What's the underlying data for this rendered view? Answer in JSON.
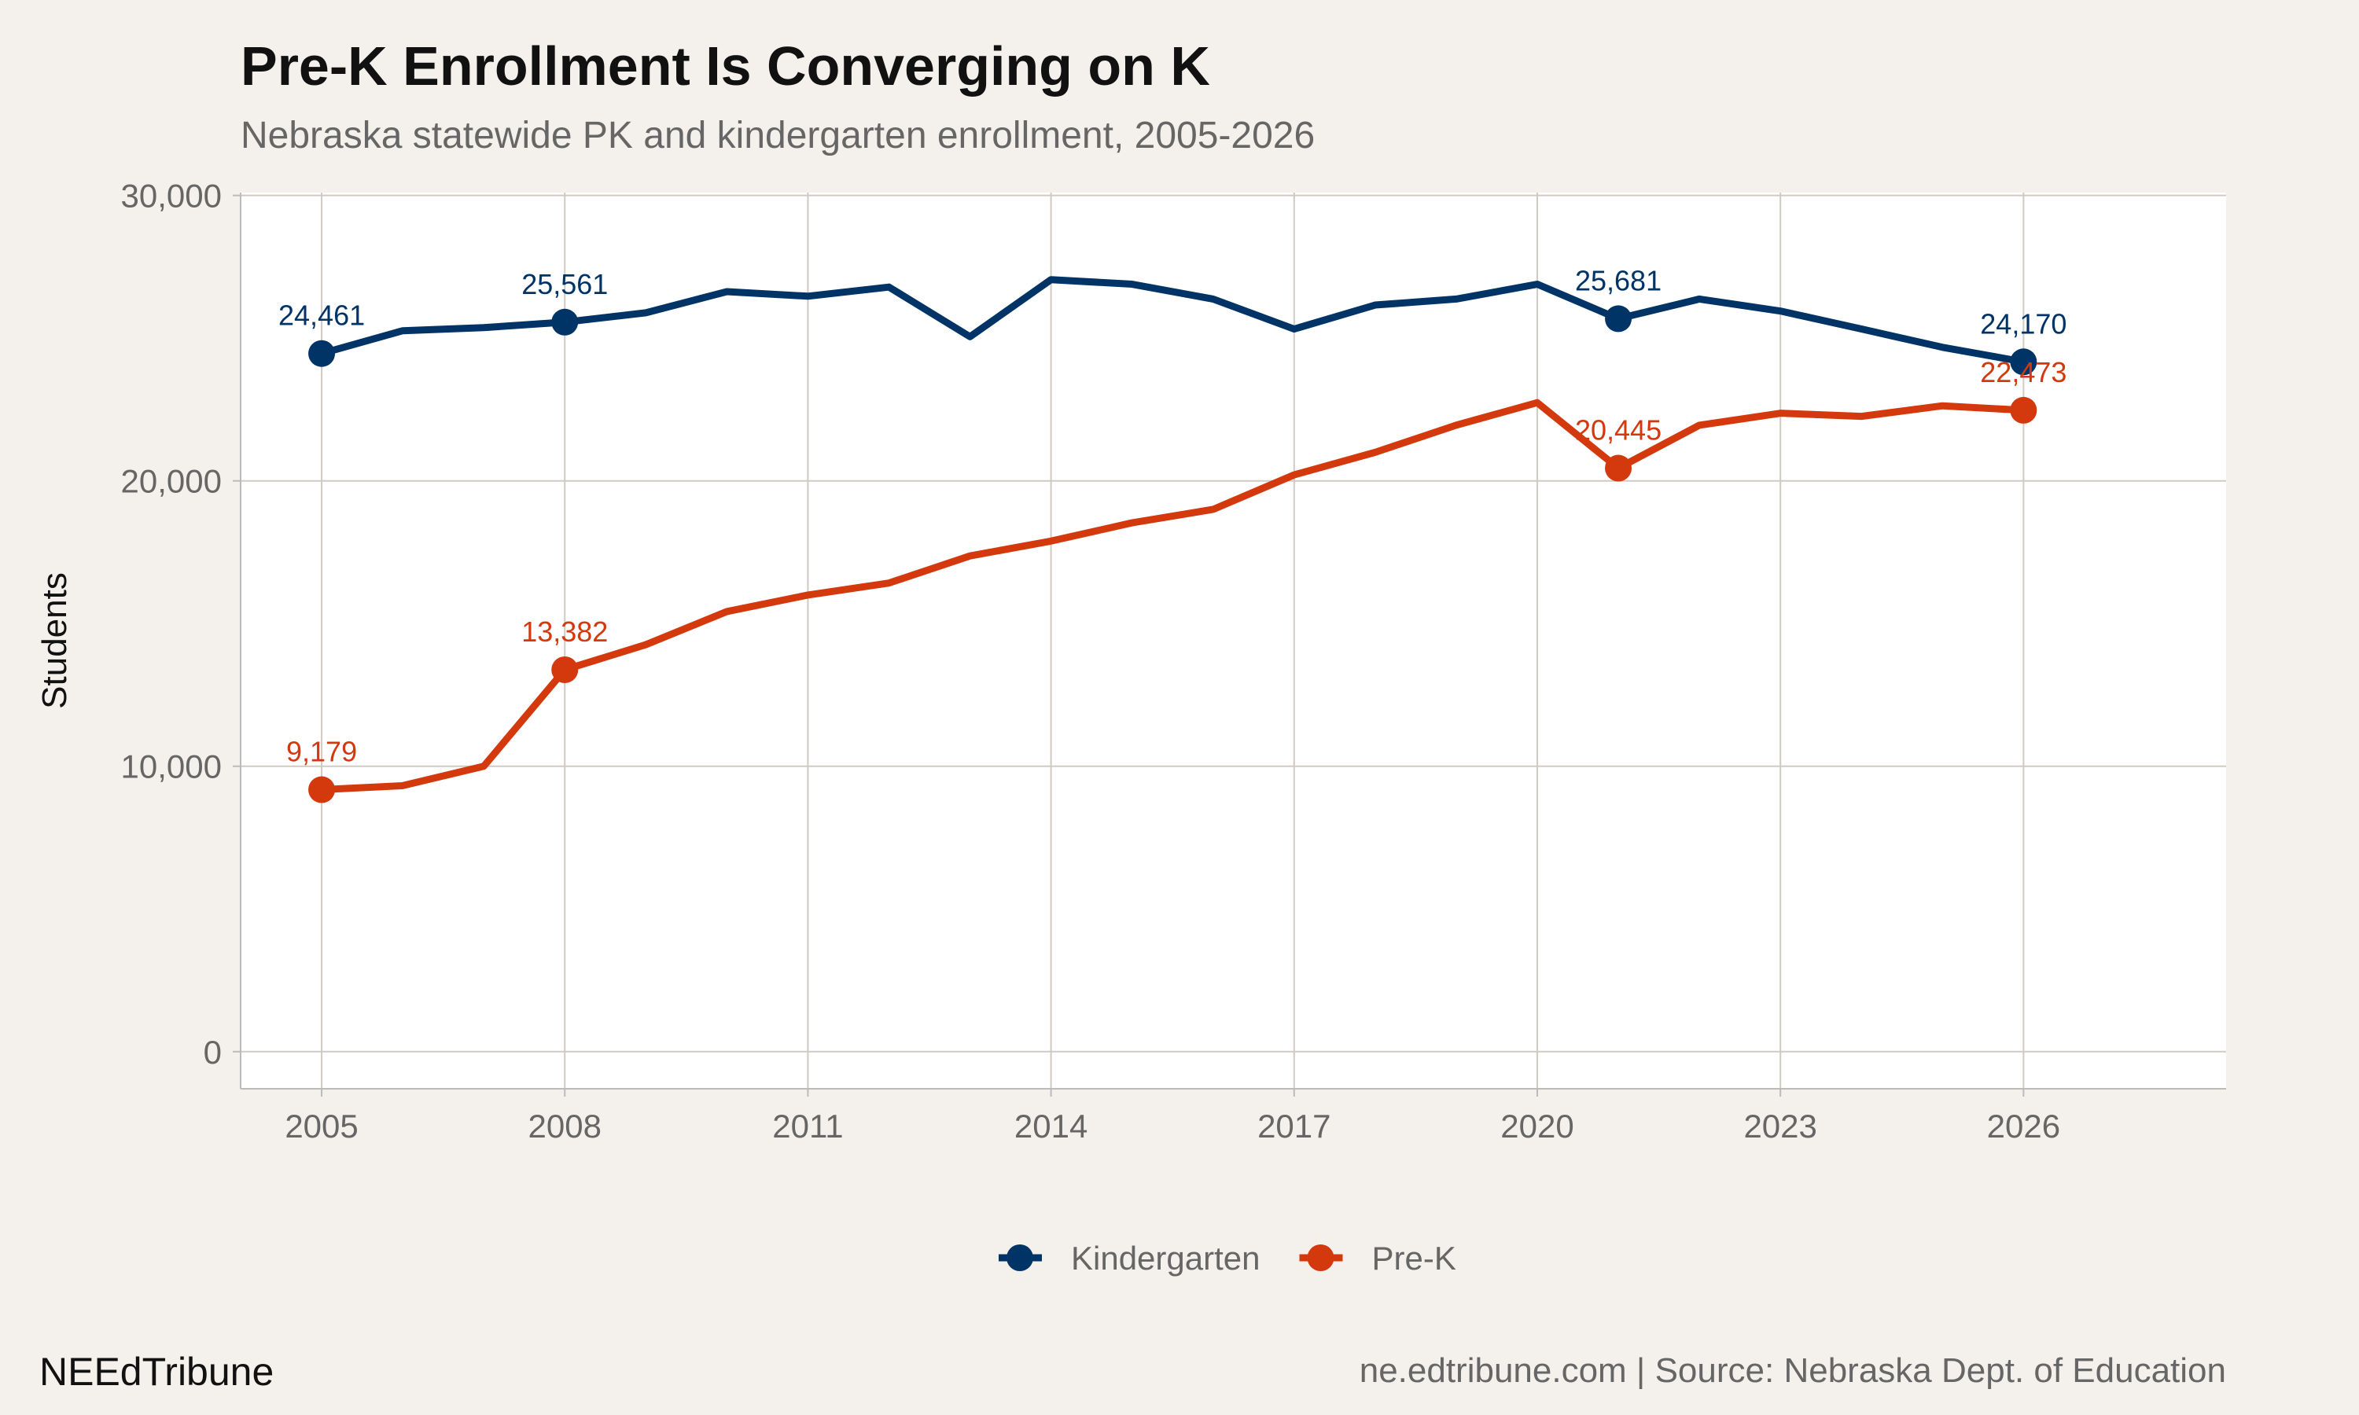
{
  "title": "Pre-K Enrollment Is Converging on K",
  "subtitle": "Nebraska statewide PK and kindergarten enrollment, 2005-2026",
  "footer": {
    "brand": "NEEdTribune",
    "source": "ne.edtribune.com | Source: Nebraska Dept. of Education"
  },
  "chart_data": {
    "type": "line",
    "title": "Pre-K Enrollment Is Converging on K",
    "subtitle": "Nebraska statewide PK and kindergarten enrollment, 2005-2026",
    "xlabel": "",
    "ylabel": "Students",
    "xlim": [
      2004,
      2028.5
    ],
    "ylim": [
      -1300,
      30100
    ],
    "xticks": [
      2005,
      2008,
      2011,
      2014,
      2017,
      2020,
      2023,
      2026
    ],
    "yticks": [
      0,
      10000,
      20000,
      30000
    ],
    "ytick_labels": [
      "0",
      "10,000",
      "20,000",
      "30,000"
    ],
    "grid": true,
    "legend_position": "bottom",
    "x": [
      2005,
      2006,
      2007,
      2008,
      2009,
      2010,
      2011,
      2012,
      2013,
      2014,
      2015,
      2016,
      2017,
      2018,
      2019,
      2020,
      2021,
      2022,
      2023,
      2024,
      2025,
      2026
    ],
    "series": [
      {
        "name": "Kindergarten",
        "color": "#003366",
        "values": [
          24461,
          25260,
          25370,
          25561,
          25890,
          26630,
          26470,
          26790,
          25050,
          27050,
          26890,
          26370,
          25320,
          26160,
          26370,
          26890,
          25681,
          26370,
          25950,
          25320,
          24680,
          24170
        ],
        "labeled_points": [
          {
            "x": 2005,
            "y": 24461,
            "label": "24,461"
          },
          {
            "x": 2008,
            "y": 25561,
            "label": "25,561"
          },
          {
            "x": 2021,
            "y": 25681,
            "label": "25,681"
          },
          {
            "x": 2026,
            "y": 24170,
            "label": "24,170"
          }
        ]
      },
      {
        "name": "Pre-K",
        "color": "#d4380d",
        "values": [
          9179,
          9320,
          10000,
          13382,
          14260,
          15420,
          16000,
          16420,
          17370,
          17890,
          18530,
          19000,
          20210,
          21000,
          21950,
          22740,
          20445,
          21950,
          22370,
          22260,
          22630,
          22473
        ],
        "labeled_points": [
          {
            "x": 2005,
            "y": 9179,
            "label": "9,179"
          },
          {
            "x": 2008,
            "y": 13382,
            "label": "13,382"
          },
          {
            "x": 2021,
            "y": 20445,
            "label": "20,445"
          },
          {
            "x": 2026,
            "y": 22473,
            "label": "22,473"
          }
        ]
      }
    ]
  }
}
